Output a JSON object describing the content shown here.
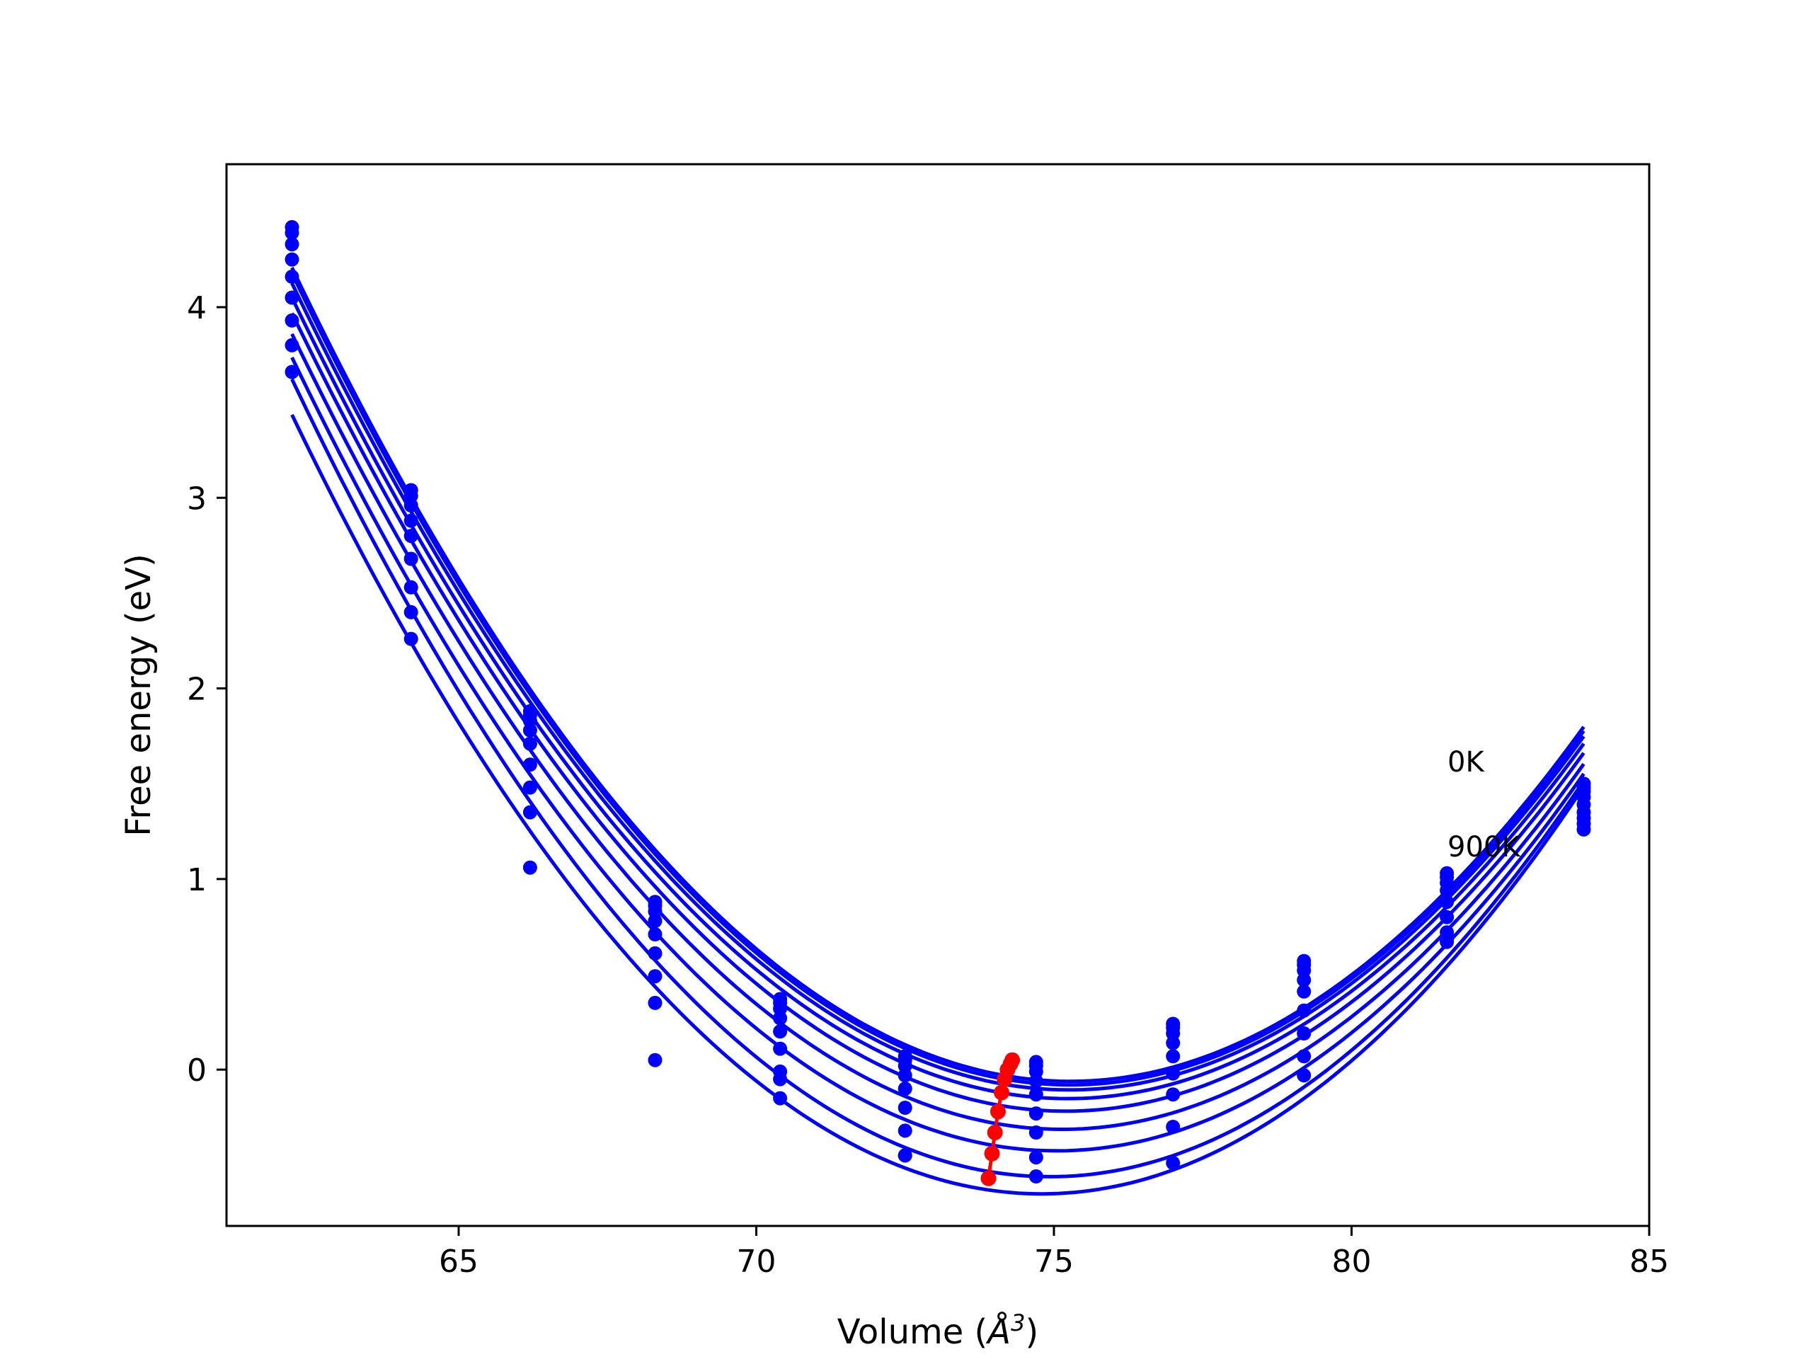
{
  "chart_data": {
    "type": "line",
    "title": "",
    "xlabel": "Volume (Å³)",
    "xlabel_parts": {
      "text": "Volume (",
      "symbol": "Å",
      "exponent": "3",
      "close": ")"
    },
    "ylabel": "Free energy (eV)",
    "xlim": [
      61.1,
      85.0
    ],
    "ylim": [
      -0.82,
      4.75
    ],
    "xticks": [
      65,
      70,
      75,
      80,
      85
    ],
    "yticks": [
      0,
      1,
      2,
      3,
      4
    ],
    "grid": false,
    "legend": "none",
    "annotations": [
      "0K",
      "900K"
    ],
    "volumes": [
      62.2,
      64.2,
      66.2,
      68.3,
      70.4,
      72.5,
      74.7,
      77.0,
      79.2,
      81.6,
      83.9
    ],
    "series_color": "#0000ff",
    "minima_color": "#ff0000",
    "series": [
      {
        "values": [
          4.42,
          3.04,
          1.88,
          0.88,
          0.37,
          0.07,
          0.04,
          0.24,
          0.57,
          1.03,
          1.5
        ]
      },
      {
        "values": [
          4.39,
          3.01,
          1.86,
          0.86,
          0.35,
          0.05,
          0.02,
          0.22,
          0.55,
          1.01,
          1.48
        ]
      },
      {
        "values": [
          4.33,
          2.96,
          1.83,
          0.83,
          0.32,
          0.02,
          -0.01,
          0.19,
          0.52,
          0.98,
          1.46
        ]
      },
      {
        "values": [
          4.25,
          2.88,
          1.78,
          0.78,
          0.27,
          -0.03,
          -0.06,
          0.14,
          0.47,
          0.94,
          1.43
        ]
      },
      {
        "values": [
          4.16,
          2.8,
          1.71,
          0.71,
          0.2,
          -0.1,
          -0.13,
          0.07,
          0.41,
          0.88,
          1.39
        ]
      },
      {
        "values": [
          4.05,
          2.68,
          1.6,
          0.61,
          0.11,
          -0.2,
          -0.23,
          -0.02,
          0.31,
          0.8,
          1.35
        ]
      },
      {
        "values": [
          3.93,
          2.53,
          1.48,
          0.49,
          -0.01,
          -0.32,
          -0.33,
          -0.13,
          0.19,
          0.72,
          1.32
        ]
      },
      {
        "values": [
          3.8,
          2.4,
          1.35,
          0.35,
          -0.15,
          -0.45,
          -0.46,
          -0.3,
          0.07,
          0.67,
          1.29
        ]
      },
      {
        "values": [
          3.66,
          2.26,
          1.06,
          0.05,
          -0.05,
          -0.45,
          -0.56,
          -0.49,
          -0.03,
          0.68,
          1.26
        ]
      }
    ],
    "minima": [
      {
        "x": 74.3,
        "y": 0.05
      },
      {
        "x": 74.27,
        "y": 0.03
      },
      {
        "x": 74.22,
        "y": 0.0
      },
      {
        "x": 74.17,
        "y": -0.05
      },
      {
        "x": 74.12,
        "y": -0.12
      },
      {
        "x": 74.06,
        "y": -0.22
      },
      {
        "x": 74.01,
        "y": -0.33
      },
      {
        "x": 73.96,
        "y": -0.44
      },
      {
        "x": 73.9,
        "y": -0.57
      }
    ]
  }
}
